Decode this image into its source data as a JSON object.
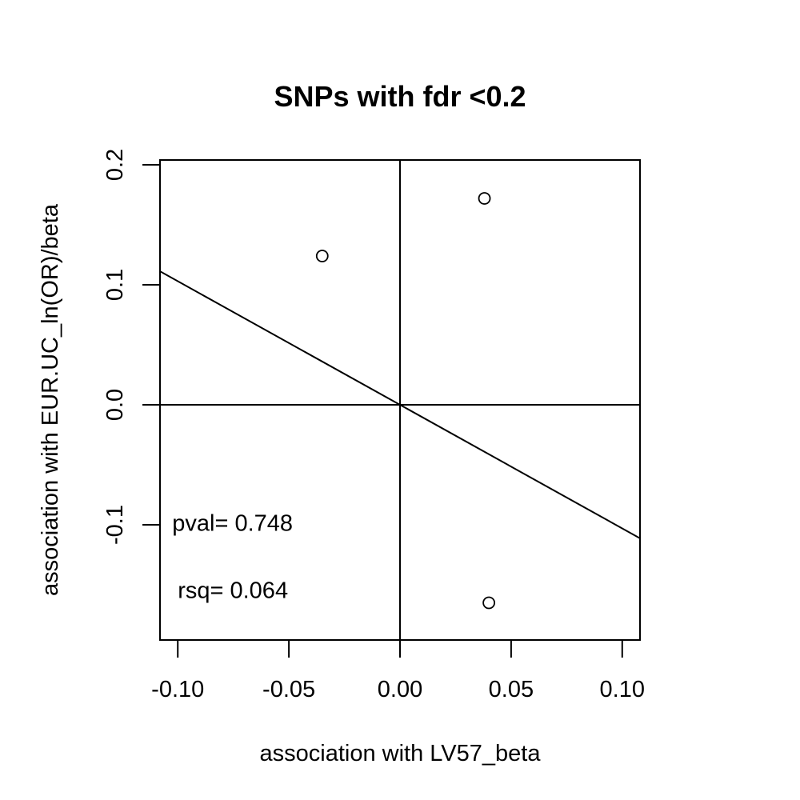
{
  "chart_data": {
    "type": "scatter",
    "title": "SNPs with fdr <0.2",
    "xlabel": "association with LV57_beta",
    "ylabel": "association with EUR.UC_ln(OR)/beta",
    "xlim": [
      -0.108,
      0.108
    ],
    "ylim": [
      -0.196,
      0.204
    ],
    "x_ticks": [
      -0.1,
      -0.05,
      0.0,
      0.05,
      0.1
    ],
    "x_tick_labels": [
      "-0.10",
      "-0.05",
      "0.00",
      "0.05",
      "0.10"
    ],
    "y_ticks": [
      -0.1,
      0.0,
      0.1,
      0.2
    ],
    "y_tick_labels": [
      "-0.1",
      "0.0",
      "0.1",
      "0.2"
    ],
    "points": [
      {
        "x": -0.035,
        "y": 0.124
      },
      {
        "x": 0.038,
        "y": 0.172
      },
      {
        "x": 0.04,
        "y": -0.165
      }
    ],
    "fit_line": {
      "intercept": 0.0,
      "slope": -1.03
    },
    "reference_lines": {
      "h": 0,
      "v": 0
    },
    "grid": false,
    "annotations": {
      "pval": "pval= 0.748",
      "rsq": "rsq= 0.064"
    },
    "annotation_positions": {
      "pval": {
        "x": -0.1025,
        "y": -0.105
      },
      "rsq": {
        "x": -0.1,
        "y": -0.161
      }
    }
  }
}
